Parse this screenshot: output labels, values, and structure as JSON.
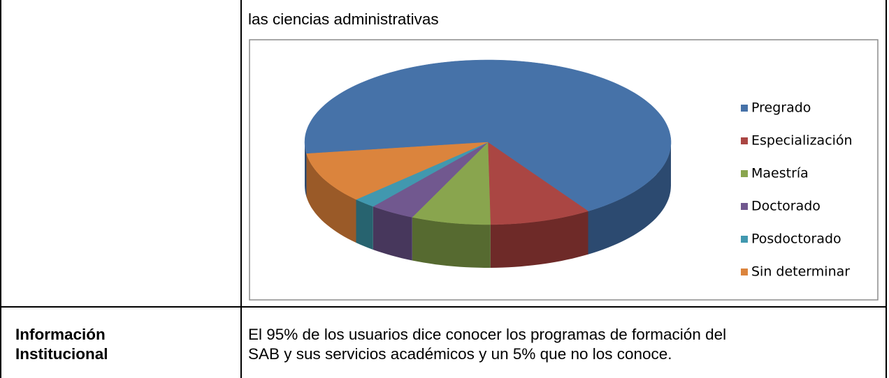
{
  "document": {
    "intro_text": "las ciencias administrativas",
    "table": {
      "row_label_lines": [
        "Información",
        "Institucional"
      ],
      "row_text_lines": [
        "El 95% de los usuarios dice conocer los programas de formación del",
        "SAB y sus servicios académicos y  un 5% que no los conoce."
      ]
    }
  },
  "chart_data": {
    "type": "pie",
    "categories": [
      "Pregrado",
      "Especialización",
      "Maestría",
      "Doctorado",
      "Posdoctorado",
      "Sin determinar"
    ],
    "values": [
      68,
      9,
      7,
      4,
      2,
      10
    ],
    "colors": [
      "#4672a8",
      "#aa4643",
      "#89a54e",
      "#71588f",
      "#4198af",
      "#db843d"
    ],
    "side_colors": [
      "#2c4a70",
      "#6e2a28",
      "#566a30",
      "#47375c",
      "#27636f",
      "#9a5a28"
    ],
    "legend": "right"
  }
}
